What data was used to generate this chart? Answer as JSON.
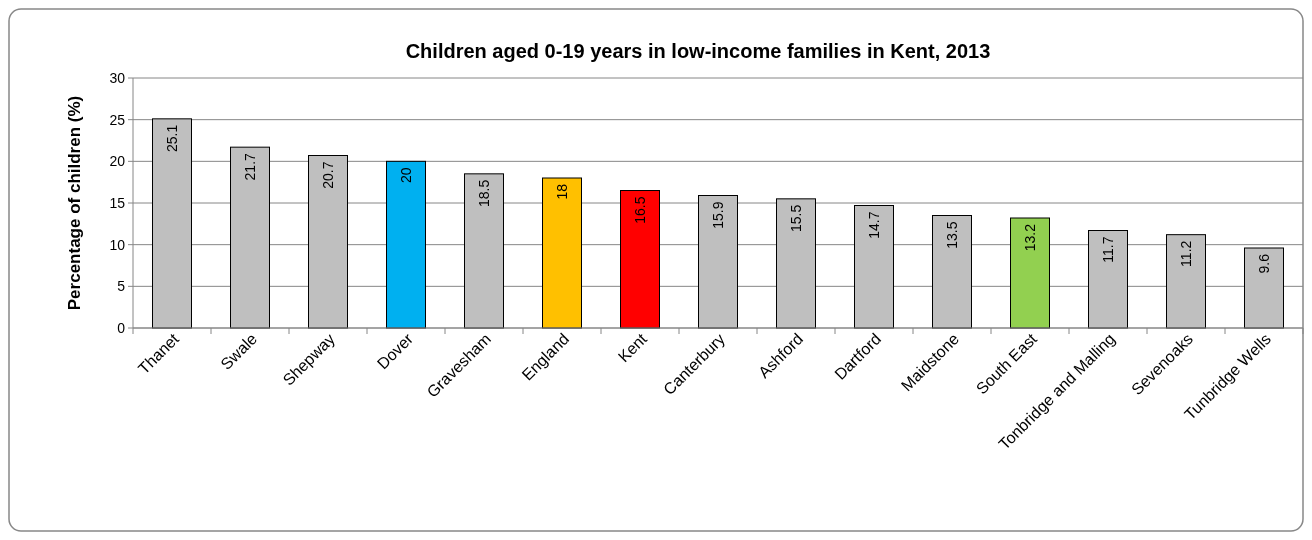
{
  "chart_data": {
    "type": "bar",
    "title": "Children aged 0-19 years in low-income families in Kent, 2013",
    "ylabel": "Percentage of children (%)",
    "categories": [
      "Thanet",
      "Swale",
      "Shepway",
      "Dover",
      "Gravesham",
      "England",
      "Kent",
      "Canterbury",
      "Ashford",
      "Dartford",
      "Maidstone",
      "South East",
      "Tonbridge and Malling",
      "Sevenoaks",
      "Tunbridge Wells"
    ],
    "values": [
      25.1,
      21.7,
      20.7,
      20,
      18.5,
      18,
      16.5,
      15.9,
      15.5,
      14.7,
      13.5,
      13.2,
      11.7,
      11.2,
      9.6
    ],
    "colors": [
      "#bfbfbf",
      "#bfbfbf",
      "#bfbfbf",
      "#00b0f0",
      "#bfbfbf",
      "#ffc000",
      "#ff0000",
      "#bfbfbf",
      "#bfbfbf",
      "#bfbfbf",
      "#bfbfbf",
      "#92d050",
      "#bfbfbf",
      "#bfbfbf",
      "#bfbfbf"
    ],
    "ylim": [
      0,
      30
    ],
    "yticks": [
      0,
      5,
      10,
      15,
      20,
      25,
      30
    ],
    "grid": "y",
    "data_labels": true
  }
}
